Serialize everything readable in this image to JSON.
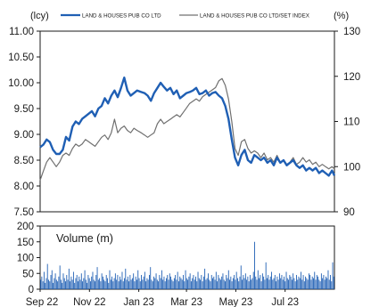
{
  "chart_data": [
    {
      "type": "line",
      "left_unit": "(lcy)",
      "right_unit": "(%)",
      "ylim_left": [
        7.5,
        11.0
      ],
      "yticks_left": [
        "7.50",
        "8.00",
        "8.50",
        "9.00",
        "9.50",
        "10.00",
        "10.50",
        "11.00"
      ],
      "ylim_right": [
        90,
        130
      ],
      "yticks_right": [
        "90",
        "100",
        "110",
        "120",
        "130"
      ],
      "xticks": [
        "Sep 22",
        "Nov 22",
        "Jan 23",
        "Mar 23",
        "May 23",
        "Jul 23"
      ],
      "x_range": [
        "2022-09-01",
        "2023-08-31"
      ],
      "legend_position": "top",
      "grid": false,
      "series": [
        {
          "name": "LAND & HOUSES PUB CO LTD",
          "axis": "left",
          "color": "#1f5fb4",
          "points": [
            [
              "2022-09-01",
              8.75
            ],
            [
              "2022-09-05",
              8.8
            ],
            [
              "2022-09-09",
              8.9
            ],
            [
              "2022-09-13",
              8.85
            ],
            [
              "2022-09-17",
              8.7
            ],
            [
              "2022-09-21",
              8.62
            ],
            [
              "2022-09-25",
              8.62
            ],
            [
              "2022-09-29",
              8.7
            ],
            [
              "2022-10-03",
              8.95
            ],
            [
              "2022-10-07",
              8.88
            ],
            [
              "2022-10-11",
              9.15
            ],
            [
              "2022-10-15",
              9.25
            ],
            [
              "2022-10-19",
              9.2
            ],
            [
              "2022-10-23",
              9.3
            ],
            [
              "2022-10-27",
              9.35
            ],
            [
              "2022-10-31",
              9.4
            ],
            [
              "2022-11-04",
              9.45
            ],
            [
              "2022-11-08",
              9.35
            ],
            [
              "2022-11-12",
              9.5
            ],
            [
              "2022-11-16",
              9.55
            ],
            [
              "2022-11-20",
              9.7
            ],
            [
              "2022-11-24",
              9.6
            ],
            [
              "2022-11-28",
              9.75
            ],
            [
              "2022-12-02",
              9.85
            ],
            [
              "2022-12-06",
              9.72
            ],
            [
              "2022-12-10",
              9.9
            ],
            [
              "2022-12-14",
              10.1
            ],
            [
              "2022-12-18",
              9.85
            ],
            [
              "2022-12-22",
              9.75
            ],
            [
              "2022-12-26",
              9.8
            ],
            [
              "2022-12-30",
              9.85
            ],
            [
              "2023-01-04",
              9.82
            ],
            [
              "2023-01-08",
              9.8
            ],
            [
              "2023-01-12",
              9.75
            ],
            [
              "2023-01-16",
              9.65
            ],
            [
              "2023-01-20",
              9.8
            ],
            [
              "2023-01-24",
              9.9
            ],
            [
              "2023-01-28",
              10.0
            ],
            [
              "2023-02-01",
              9.92
            ],
            [
              "2023-02-05",
              9.85
            ],
            [
              "2023-02-09",
              9.9
            ],
            [
              "2023-02-13",
              9.78
            ],
            [
              "2023-02-17",
              9.85
            ],
            [
              "2023-02-21",
              9.7
            ],
            [
              "2023-02-25",
              9.75
            ],
            [
              "2023-03-01",
              9.8
            ],
            [
              "2023-03-05",
              9.82
            ],
            [
              "2023-03-09",
              9.85
            ],
            [
              "2023-03-13",
              9.9
            ],
            [
              "2023-03-17",
              9.78
            ],
            [
              "2023-03-21",
              9.8
            ],
            [
              "2023-03-25",
              9.85
            ],
            [
              "2023-03-29",
              9.75
            ],
            [
              "2023-04-02",
              9.8
            ],
            [
              "2023-04-06",
              9.82
            ],
            [
              "2023-04-10",
              9.75
            ],
            [
              "2023-04-14",
              9.7
            ],
            [
              "2023-04-18",
              9.55
            ],
            [
              "2023-04-22",
              9.3
            ],
            [
              "2023-04-26",
              8.9
            ],
            [
              "2023-04-30",
              8.55
            ],
            [
              "2023-05-04",
              8.4
            ],
            [
              "2023-05-08",
              8.6
            ],
            [
              "2023-05-12",
              8.7
            ],
            [
              "2023-05-16",
              8.5
            ],
            [
              "2023-05-20",
              8.45
            ],
            [
              "2023-05-24",
              8.6
            ],
            [
              "2023-05-28",
              8.55
            ],
            [
              "2023-06-01",
              8.5
            ],
            [
              "2023-06-05",
              8.55
            ],
            [
              "2023-06-09",
              8.45
            ],
            [
              "2023-06-13",
              8.5
            ],
            [
              "2023-06-17",
              8.4
            ],
            [
              "2023-06-21",
              8.55
            ],
            [
              "2023-06-25",
              8.45
            ],
            [
              "2023-06-29",
              8.5
            ],
            [
              "2023-07-03",
              8.4
            ],
            [
              "2023-07-07",
              8.45
            ],
            [
              "2023-07-11",
              8.5
            ],
            [
              "2023-07-15",
              8.4
            ],
            [
              "2023-07-19",
              8.35
            ],
            [
              "2023-07-23",
              8.4
            ],
            [
              "2023-07-27",
              8.3
            ],
            [
              "2023-07-31",
              8.35
            ],
            [
              "2023-08-04",
              8.3
            ],
            [
              "2023-08-08",
              8.35
            ],
            [
              "2023-08-12",
              8.25
            ],
            [
              "2023-08-16",
              8.3
            ],
            [
              "2023-08-20",
              8.25
            ],
            [
              "2023-08-24",
              8.2
            ],
            [
              "2023-08-28",
              8.3
            ],
            [
              "2023-08-31",
              8.2
            ]
          ]
        },
        {
          "name": "LAND & HOUSES PUB CO LTD/SET INDEX",
          "axis": "right",
          "color": "#707070",
          "points": [
            [
              "2022-09-01",
              97
            ],
            [
              "2022-09-05",
              99
            ],
            [
              "2022-09-09",
              101
            ],
            [
              "2022-09-13",
              102
            ],
            [
              "2022-09-17",
              101
            ],
            [
              "2022-09-21",
              100
            ],
            [
              "2022-09-25",
              101
            ],
            [
              "2022-09-29",
              102.5
            ],
            [
              "2022-10-03",
              103
            ],
            [
              "2022-10-07",
              102.5
            ],
            [
              "2022-10-11",
              104
            ],
            [
              "2022-10-15",
              105
            ],
            [
              "2022-10-19",
              104.5
            ],
            [
              "2022-10-23",
              105
            ],
            [
              "2022-10-27",
              106
            ],
            [
              "2022-10-31",
              105.5
            ],
            [
              "2022-11-04",
              105
            ],
            [
              "2022-11-08",
              104.5
            ],
            [
              "2022-11-12",
              105.5
            ],
            [
              "2022-11-16",
              106.5
            ],
            [
              "2022-11-20",
              107
            ],
            [
              "2022-11-24",
              106
            ],
            [
              "2022-11-28",
              107.5
            ],
            [
              "2022-12-02",
              110.5
            ],
            [
              "2022-12-06",
              107.5
            ],
            [
              "2022-12-10",
              108.5
            ],
            [
              "2022-12-14",
              109
            ],
            [
              "2022-12-18",
              108
            ],
            [
              "2022-12-22",
              107.5
            ],
            [
              "2022-12-26",
              108.5
            ],
            [
              "2022-12-30",
              108
            ],
            [
              "2023-01-04",
              107.5
            ],
            [
              "2023-01-08",
              107
            ],
            [
              "2023-01-12",
              106.5
            ],
            [
              "2023-01-16",
              107
            ],
            [
              "2023-01-20",
              107.5
            ],
            [
              "2023-01-24",
              109.5
            ],
            [
              "2023-01-28",
              110.5
            ],
            [
              "2023-02-01",
              109.5
            ],
            [
              "2023-02-05",
              110
            ],
            [
              "2023-02-09",
              110.5
            ],
            [
              "2023-02-13",
              111
            ],
            [
              "2023-02-17",
              111.5
            ],
            [
              "2023-02-21",
              111
            ],
            [
              "2023-02-25",
              112
            ],
            [
              "2023-03-01",
              113
            ],
            [
              "2023-03-05",
              114
            ],
            [
              "2023-03-09",
              114.5
            ],
            [
              "2023-03-13",
              115
            ],
            [
              "2023-03-17",
              114.5
            ],
            [
              "2023-03-21",
              115.5
            ],
            [
              "2023-03-25",
              116
            ],
            [
              "2023-03-29",
              116.5
            ],
            [
              "2023-04-02",
              117
            ],
            [
              "2023-04-06",
              117.5
            ],
            [
              "2023-04-10",
              119
            ],
            [
              "2023-04-14",
              119.5
            ],
            [
              "2023-04-18",
              118
            ],
            [
              "2023-04-22",
              115
            ],
            [
              "2023-04-26",
              110
            ],
            [
              "2023-04-30",
              104
            ],
            [
              "2023-05-04",
              102.5
            ],
            [
              "2023-05-08",
              105.5
            ],
            [
              "2023-05-12",
              106
            ],
            [
              "2023-05-16",
              104
            ],
            [
              "2023-05-20",
              103
            ],
            [
              "2023-05-24",
              103.5
            ],
            [
              "2023-05-28",
              103
            ],
            [
              "2023-06-01",
              102
            ],
            [
              "2023-06-05",
              103
            ],
            [
              "2023-06-09",
              101.5
            ],
            [
              "2023-06-13",
              102
            ],
            [
              "2023-06-17",
              101
            ],
            [
              "2023-06-21",
              102.5
            ],
            [
              "2023-06-25",
              101
            ],
            [
              "2023-06-29",
              101.5
            ],
            [
              "2023-07-03",
              100.5
            ],
            [
              "2023-07-07",
              101
            ],
            [
              "2023-07-11",
              102
            ],
            [
              "2023-07-15",
              100.5
            ],
            [
              "2023-07-19",
              101
            ],
            [
              "2023-07-23",
              102
            ],
            [
              "2023-07-27",
              101
            ],
            [
              "2023-07-31",
              101.5
            ],
            [
              "2023-08-04",
              100.5
            ],
            [
              "2023-08-08",
              101
            ],
            [
              "2023-08-12",
              100
            ],
            [
              "2023-08-16",
              100.5
            ],
            [
              "2023-08-20",
              100
            ],
            [
              "2023-08-24",
              99.5
            ],
            [
              "2023-08-28",
              100
            ],
            [
              "2023-08-31",
              99.5
            ]
          ]
        }
      ]
    },
    {
      "type": "bar",
      "label": "Volume (m)",
      "ylim": [
        0,
        200
      ],
      "yticks": [
        "0",
        "50",
        "100",
        "150",
        "200"
      ],
      "xticks": [
        "Sep 22",
        "Nov 22",
        "Jan 23",
        "Mar 23",
        "May 23",
        "Jul 23"
      ],
      "color": "#1f5fb4",
      "values": [
        30,
        40,
        25,
        55,
        20,
        35,
        80,
        30,
        25,
        45,
        60,
        20,
        35,
        50,
        30,
        25,
        40,
        75,
        30,
        20,
        50,
        35,
        25,
        45,
        30,
        65,
        25,
        40,
        30,
        55,
        20,
        35,
        45,
        25,
        40,
        30,
        50,
        25,
        35,
        60,
        30,
        20,
        45,
        35,
        25,
        40,
        55,
        30,
        25,
        45,
        70,
        30,
        35,
        25,
        50,
        40,
        30,
        25,
        45,
        35,
        20,
        60,
        30,
        40,
        25,
        35,
        50,
        30,
        45,
        25,
        40,
        30,
        55,
        25,
        35,
        65,
        30,
        40,
        25,
        45,
        30,
        35,
        50,
        25,
        40,
        30,
        60,
        35,
        25,
        45,
        30,
        40,
        55,
        25,
        35,
        30,
        45,
        70,
        30,
        25,
        40,
        35,
        50,
        30,
        25,
        45,
        35,
        60,
        30,
        40,
        25,
        35,
        45,
        30,
        50,
        40,
        30,
        25,
        35,
        45,
        30,
        55,
        25,
        40,
        35,
        30,
        45,
        25,
        60,
        35,
        30,
        40,
        50,
        25,
        35,
        45,
        30,
        40,
        25,
        55,
        35,
        30,
        45,
        25,
        40,
        65,
        30,
        35,
        50,
        30,
        25,
        45,
        35,
        40,
        30,
        55,
        25,
        45,
        35,
        30,
        40,
        50,
        30,
        25,
        45,
        35,
        60,
        30,
        40,
        25,
        35,
        45,
        30,
        55,
        35,
        25,
        40,
        75,
        30,
        45,
        35,
        50,
        30,
        40,
        25,
        45,
        30,
        35,
        55,
        150,
        40,
        30,
        60,
        35,
        45,
        25,
        50,
        40,
        30,
        85,
        35,
        45,
        30,
        40,
        55,
        30,
        35,
        45,
        25,
        40,
        30,
        50,
        35,
        45,
        30,
        40,
        25,
        55,
        35,
        30,
        45,
        40,
        30,
        50,
        35,
        25,
        45,
        30,
        40,
        35,
        55,
        30,
        45,
        25,
        40,
        35,
        30,
        50,
        45,
        30,
        40,
        35,
        55,
        30,
        45,
        40,
        30,
        25,
        50,
        35,
        45,
        30,
        40,
        35,
        60,
        30,
        45,
        25,
        85,
        40
      ]
    }
  ]
}
